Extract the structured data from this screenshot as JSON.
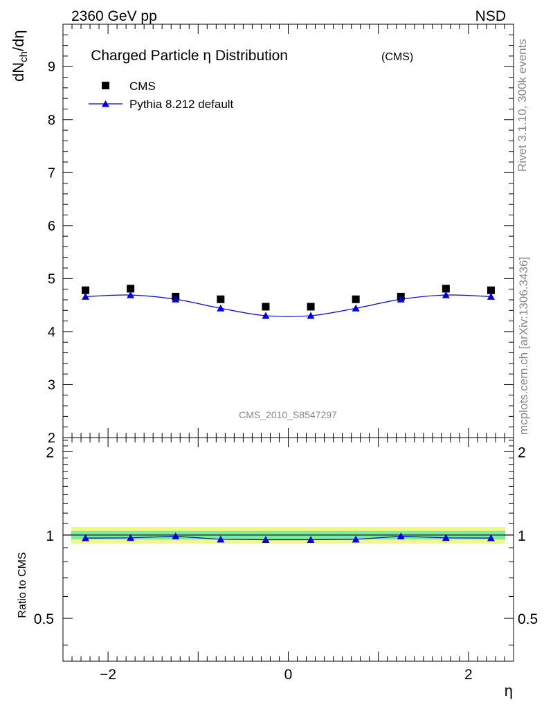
{
  "header": {
    "left": "2360 GeV pp",
    "right": "NSD"
  },
  "side_labels": {
    "rivet": "Rivet 3.1.10,  300k events",
    "mcplots": "mcplots.cern.ch [arXiv:1306.3436]"
  },
  "chart_data": {
    "type": "scatter",
    "title": "Charged Particle η Distribution",
    "title_suffix": "(CMS)",
    "watermark": "CMS_2010_S8547297",
    "xlabel": "η",
    "ylabel_main": "dN_ch/dη",
    "ylabel_ratio": "Ratio to CMS",
    "xlim": [
      -2.5,
      2.5
    ],
    "ylim_main": [
      2,
      9.8
    ],
    "ylim_ratio": [
      0.35,
      2.25
    ],
    "x_ticks": [
      -2,
      0,
      2
    ],
    "y_ticks_main": [
      2,
      3,
      4,
      5,
      6,
      7,
      8,
      9
    ],
    "y_ticks_ratio": [
      0.5,
      1,
      2
    ],
    "x": [
      -2.25,
      -1.75,
      -1.25,
      -0.75,
      -0.25,
      0.25,
      0.75,
      1.25,
      1.75,
      2.25
    ],
    "series": [
      {
        "name": "CMS",
        "style": "marker-square",
        "color": "#000000",
        "values": [
          4.78,
          4.81,
          4.66,
          4.61,
          4.47,
          4.47,
          4.61,
          4.66,
          4.81,
          4.78
        ]
      },
      {
        "name": "Pythia 8.212 default",
        "style": "line-triangle",
        "color": "#0000dd",
        "values": [
          4.66,
          4.69,
          4.61,
          4.44,
          4.3,
          4.3,
          4.44,
          4.61,
          4.69,
          4.66
        ]
      }
    ],
    "ratio": {
      "values": [
        0.975,
        0.977,
        0.99,
        0.965,
        0.962,
        0.962,
        0.965,
        0.99,
        0.977,
        0.975
      ],
      "band_inner": 0.035,
      "band_outer": 0.07,
      "band_inner_color": "#77ee99",
      "band_outer_color": "#f5f590"
    }
  }
}
